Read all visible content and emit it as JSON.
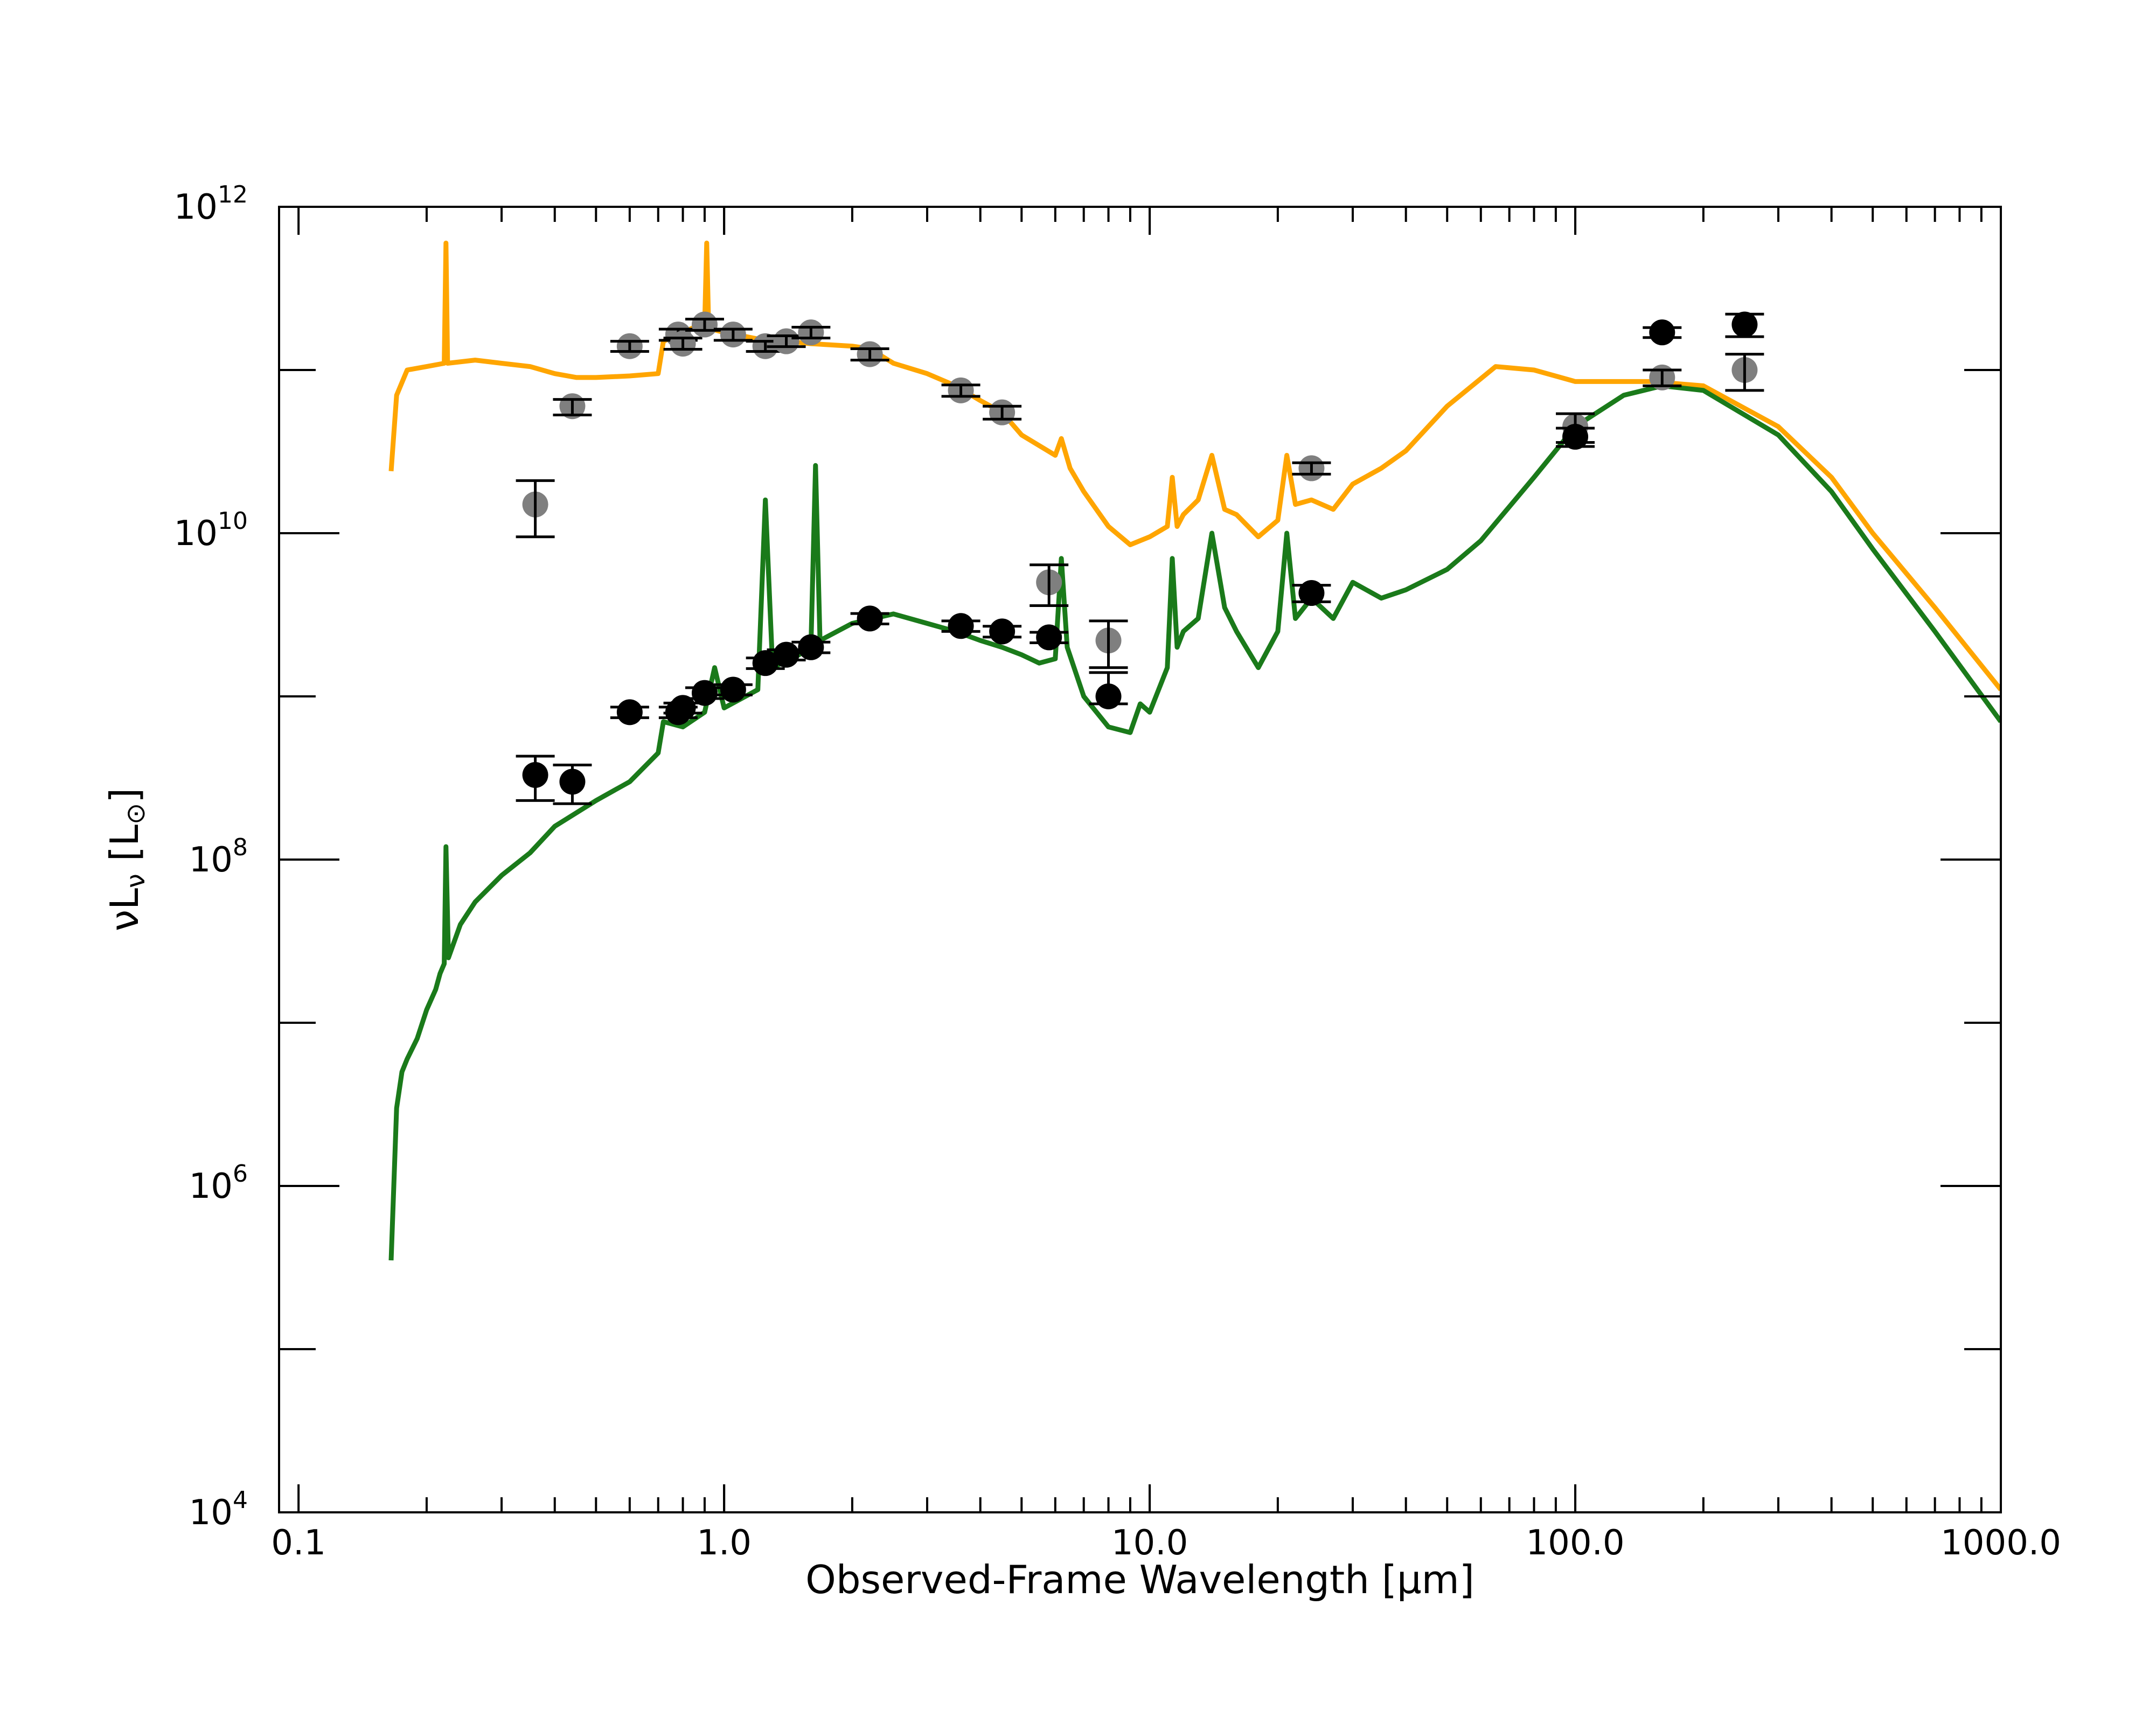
{
  "chart_data": {
    "type": "scatter",
    "title": "",
    "xlabel": "Observed-Frame Wavelength [μm]",
    "ylabel": "νL_ν [L_⊙]",
    "xscale": "log",
    "yscale": "log",
    "xlim": [
      0.09,
      1000
    ],
    "ylim": [
      10000,
      1000000000000
    ],
    "xticks": [
      {
        "value": 0.1,
        "label": "0.1"
      },
      {
        "value": 1,
        "label": "1.0"
      },
      {
        "value": 10,
        "label": "10.0"
      },
      {
        "value": 100,
        "label": "100.0"
      },
      {
        "value": 1000,
        "label": "1000.0"
      }
    ],
    "yticks": [
      {
        "value": 10000,
        "base": "10",
        "exp": "4"
      },
      {
        "value": 1000000,
        "base": "10",
        "exp": "6"
      },
      {
        "value": 100000000,
        "base": "10",
        "exp": "8"
      },
      {
        "value": 10000000000,
        "base": "10",
        "exp": "10"
      },
      {
        "value": 1000000000000,
        "base": "10",
        "exp": "12"
      }
    ],
    "grid": false,
    "legend": "none",
    "series": [
      {
        "kind": "line",
        "color": "#FFA500",
        "points": [
          [
            0.165,
            24000000000.0
          ],
          [
            0.17,
            70000000000.0
          ],
          [
            0.18,
            100000000000.0
          ],
          [
            0.2,
            105000000000.0
          ],
          [
            0.22,
            110000000000.0
          ],
          [
            0.222,
            600000000000.0
          ],
          [
            0.224,
            110000000000.0
          ],
          [
            0.26,
            115000000000.0
          ],
          [
            0.3,
            110000000000.0
          ],
          [
            0.35,
            105000000000.0
          ],
          [
            0.4,
            95000000000.0
          ],
          [
            0.45,
            90000000000.0
          ],
          [
            0.5,
            90000000000.0
          ],
          [
            0.6,
            92000000000.0
          ],
          [
            0.7,
            95000000000.0
          ],
          [
            0.72,
            150000000000.0
          ],
          [
            0.8,
            170000000000.0
          ],
          [
            0.88,
            190000000000.0
          ],
          [
            0.9,
            190000000000.0
          ],
          [
            0.91,
            600000000000.0
          ],
          [
            0.92,
            180000000000.0
          ],
          [
            1.0,
            170000000000.0
          ],
          [
            1.2,
            155000000000.0
          ],
          [
            1.4,
            150000000000.0
          ],
          [
            1.6,
            145000000000.0
          ],
          [
            2.0,
            140000000000.0
          ],
          [
            2.2,
            135000000000.0
          ],
          [
            2.5,
            110000000000.0
          ],
          [
            3.0,
            95000000000.0
          ],
          [
            3.5,
            80000000000.0
          ],
          [
            4.0,
            65000000000.0
          ],
          [
            4.5,
            55000000000.0
          ],
          [
            5.0,
            40000000000.0
          ],
          [
            6.0,
            30000000000.0
          ],
          [
            6.2,
            38000000000.0
          ],
          [
            6.5,
            25000000000.0
          ],
          [
            7.0,
            18000000000.0
          ],
          [
            8.0,
            11000000000.0
          ],
          [
            9.0,
            8500000000.0
          ],
          [
            10.0,
            9500000000.0
          ],
          [
            11.0,
            11000000000.0
          ],
          [
            11.3,
            22000000000.0
          ],
          [
            11.6,
            11000000000.0
          ],
          [
            12.0,
            13000000000.0
          ],
          [
            13.0,
            16000000000.0
          ],
          [
            14.0,
            30000000000.0
          ],
          [
            15.0,
            14000000000.0
          ],
          [
            16.0,
            13000000000.0
          ],
          [
            18.0,
            9500000000.0
          ],
          [
            20.0,
            12000000000.0
          ],
          [
            21.0,
            30000000000.0
          ],
          [
            22.0,
            15000000000.0
          ],
          [
            24.0,
            16000000000.0
          ],
          [
            27.0,
            14000000000.0
          ],
          [
            30.0,
            20000000000.0
          ],
          [
            35.0,
            25000000000.0
          ],
          [
            40.0,
            32000000000.0
          ],
          [
            50.0,
            60000000000.0
          ],
          [
            65.0,
            105000000000.0
          ],
          [
            80.0,
            100000000000.0
          ],
          [
            100.0,
            85000000000.0
          ],
          [
            150.0,
            85000000000.0
          ],
          [
            200.0,
            80000000000.0
          ],
          [
            300.0,
            45000000000.0
          ],
          [
            400.0,
            22000000000.0
          ],
          [
            500.0,
            10000000000.0
          ],
          [
            700.0,
            3500000000.0
          ],
          [
            1000.0,
            1100000000.0
          ]
        ]
      },
      {
        "kind": "line",
        "color": "#1A7A1A",
        "points": [
          [
            0.165,
            350000.0
          ],
          [
            0.17,
            3000000.0
          ],
          [
            0.175,
            5000000.0
          ],
          [
            0.18,
            6000000.0
          ],
          [
            0.19,
            8000000.0
          ],
          [
            0.2,
            12000000.0
          ],
          [
            0.21,
            16000000.0
          ],
          [
            0.215,
            20000000.0
          ],
          [
            0.22,
            23000000.0
          ],
          [
            0.222,
            120000000.0
          ],
          [
            0.225,
            25000000.0
          ],
          [
            0.24,
            40000000.0
          ],
          [
            0.26,
            55000000.0
          ],
          [
            0.3,
            80000000.0
          ],
          [
            0.35,
            110000000.0
          ],
          [
            0.4,
            160000000.0
          ],
          [
            0.5,
            230000000.0
          ],
          [
            0.6,
            300000000.0
          ],
          [
            0.7,
            450000000.0
          ],
          [
            0.72,
            700000000.0
          ],
          [
            0.8,
            650000000.0
          ],
          [
            0.9,
            800000000.0
          ],
          [
            0.95,
            1500000000.0
          ],
          [
            1.0,
            850000000.0
          ],
          [
            1.2,
            1100000000.0
          ],
          [
            1.25,
            16000000000.0
          ],
          [
            1.3,
            1500000000.0
          ],
          [
            1.5,
            1800000000.0
          ],
          [
            1.6,
            2100000000.0
          ],
          [
            1.64,
            26000000000.0
          ],
          [
            1.68,
            2200000000.0
          ],
          [
            2.0,
            2800000000.0
          ],
          [
            2.5,
            3200000000.0
          ],
          [
            3.0,
            2800000000.0
          ],
          [
            3.5,
            2500000000.0
          ],
          [
            4.0,
            2200000000.0
          ],
          [
            4.5,
            2000000000.0
          ],
          [
            5.0,
            1800000000.0
          ],
          [
            5.5,
            1600000000.0
          ],
          [
            6.0,
            1700000000.0
          ],
          [
            6.2,
            7000000000.0
          ],
          [
            6.4,
            2000000000.0
          ],
          [
            7.0,
            1000000000.0
          ],
          [
            8.0,
            650000000.0
          ],
          [
            9.0,
            600000000.0
          ],
          [
            9.5,
            900000000.0
          ],
          [
            10.0,
            800000000.0
          ],
          [
            11.0,
            1500000000.0
          ],
          [
            11.3,
            7000000000.0
          ],
          [
            11.6,
            2000000000.0
          ],
          [
            12.0,
            2500000000.0
          ],
          [
            13.0,
            3000000000.0
          ],
          [
            14.0,
            10000000000.0
          ],
          [
            15.0,
            3500000000.0
          ],
          [
            16.0,
            2500000000.0
          ],
          [
            18.0,
            1500000000.0
          ],
          [
            20.0,
            2500000000.0
          ],
          [
            21.0,
            10000000000.0
          ],
          [
            22.0,
            3000000000.0
          ],
          [
            24.0,
            4000000000.0
          ],
          [
            27.0,
            3000000000.0
          ],
          [
            30.0,
            5000000000.0
          ],
          [
            35.0,
            4000000000.0
          ],
          [
            40.0,
            4500000000.0
          ],
          [
            50.0,
            6000000000.0
          ],
          [
            60.0,
            9000000000.0
          ],
          [
            80.0,
            22000000000.0
          ],
          [
            100.0,
            45000000000.0
          ],
          [
            130.0,
            70000000000.0
          ],
          [
            160.0,
            80000000000.0
          ],
          [
            200.0,
            75000000000.0
          ],
          [
            300.0,
            40000000000.0
          ],
          [
            400.0,
            18000000000.0
          ],
          [
            500.0,
            8000000000.0
          ],
          [
            700.0,
            2500000000.0
          ],
          [
            1000.0,
            700000000.0
          ]
        ]
      },
      {
        "kind": "points",
        "color": "#7F7F7F",
        "points": [
          {
            "x": 0.36,
            "y": 15000000000.0,
            "lo": 9500000000.0,
            "hi": 21000000000.0
          },
          {
            "x": 0.44,
            "y": 60000000000.0,
            "lo": 53000000000.0,
            "hi": 66000000000.0
          },
          {
            "x": 0.6,
            "y": 140000000000.0,
            "lo": 130000000000.0,
            "hi": 150000000000.0
          },
          {
            "x": 0.78,
            "y": 165000000000.0,
            "lo": 152000000000.0,
            "hi": 178000000000.0
          },
          {
            "x": 0.8,
            "y": 145000000000.0,
            "lo": 134000000000.0,
            "hi": 157000000000.0
          },
          {
            "x": 0.9,
            "y": 190000000000.0,
            "lo": 175000000000.0,
            "hi": 205000000000.0
          },
          {
            "x": 1.05,
            "y": 165000000000.0,
            "lo": 152000000000.0,
            "hi": 178000000000.0
          },
          {
            "x": 1.25,
            "y": 140000000000.0,
            "lo": 130000000000.0,
            "hi": 150000000000.0
          },
          {
            "x": 1.4,
            "y": 150000000000.0,
            "lo": 139000000000.0,
            "hi": 162000000000.0
          },
          {
            "x": 1.6,
            "y": 170000000000.0,
            "lo": 157000000000.0,
            "hi": 183000000000.0
          },
          {
            "x": 2.2,
            "y": 125000000000.0,
            "lo": 115000000000.0,
            "hi": 135000000000.0
          },
          {
            "x": 3.6,
            "y": 75000000000.0,
            "lo": 69000000000.0,
            "hi": 81000000000.0
          },
          {
            "x": 4.5,
            "y": 55000000000.0,
            "lo": 50000000000.0,
            "hi": 60000000000.0
          },
          {
            "x": 5.8,
            "y": 5000000000.0,
            "lo": 3600000000.0,
            "hi": 6400000000.0
          },
          {
            "x": 8.0,
            "y": 2200000000.0,
            "lo": 1500000000.0,
            "hi": 2900000000.0
          },
          {
            "x": 24.0,
            "y": 25000000000.0,
            "lo": 23000000000.0,
            "hi": 27000000000.0
          },
          {
            "x": 100.0,
            "y": 45000000000.0,
            "lo": 36000000000.0,
            "hi": 54000000000.0
          },
          {
            "x": 160.0,
            "y": 90000000000.0,
            "lo": 80000000000.0,
            "hi": 100000000000.0
          },
          {
            "x": 250.0,
            "y": 100000000000.0,
            "lo": 75000000000.0,
            "hi": 125000000000.0
          }
        ]
      },
      {
        "kind": "points",
        "color": "#000000",
        "points": [
          {
            "x": 0.36,
            "y": 330000000.0,
            "lo": 230000000.0,
            "hi": 430000000.0
          },
          {
            "x": 0.44,
            "y": 300000000.0,
            "lo": 220000000.0,
            "hi": 380000000.0
          },
          {
            "x": 0.6,
            "y": 800000000.0,
            "lo": 740000000.0,
            "hi": 860000000.0
          },
          {
            "x": 0.78,
            "y": 800000000.0,
            "lo": 740000000.0,
            "hi": 860000000.0
          },
          {
            "x": 0.8,
            "y": 850000000.0,
            "lo": 790000000.0,
            "hi": 910000000.0
          },
          {
            "x": 0.9,
            "y": 1050000000.0,
            "lo": 970000000.0,
            "hi": 1130000000.0
          },
          {
            "x": 1.05,
            "y": 1100000000.0,
            "lo": 1020000000.0,
            "hi": 1180000000.0
          },
          {
            "x": 1.25,
            "y": 1600000000.0,
            "lo": 1480000000.0,
            "hi": 1720000000.0
          },
          {
            "x": 1.4,
            "y": 1800000000.0,
            "lo": 1670000000.0,
            "hi": 1930000000.0
          },
          {
            "x": 1.6,
            "y": 2000000000.0,
            "lo": 1850000000.0,
            "hi": 2150000000.0
          },
          {
            "x": 2.2,
            "y": 3000000000.0,
            "lo": 2780000000.0,
            "hi": 3220000000.0
          },
          {
            "x": 3.6,
            "y": 2700000000.0,
            "lo": 2500000000.0,
            "hi": 2900000000.0
          },
          {
            "x": 4.5,
            "y": 2500000000.0,
            "lo": 2310000000.0,
            "hi": 2690000000.0
          },
          {
            "x": 5.8,
            "y": 2300000000.0,
            "lo": 2130000000.0,
            "hi": 2470000000.0
          },
          {
            "x": 8.0,
            "y": 1000000000.0,
            "lo": 900000000.0,
            "hi": 1400000000.0
          },
          {
            "x": 24.0,
            "y": 4300000000.0,
            "lo": 3800000000.0,
            "hi": 4800000000.0
          },
          {
            "x": 100.0,
            "y": 39000000000.0,
            "lo": 34000000000.0,
            "hi": 44000000000.0
          },
          {
            "x": 160.0,
            "y": 170000000000.0,
            "lo": 158000000000.0,
            "hi": 182000000000.0
          },
          {
            "x": 250.0,
            "y": 190000000000.0,
            "lo": 160000000000.0,
            "hi": 220000000000.0
          }
        ]
      }
    ]
  }
}
